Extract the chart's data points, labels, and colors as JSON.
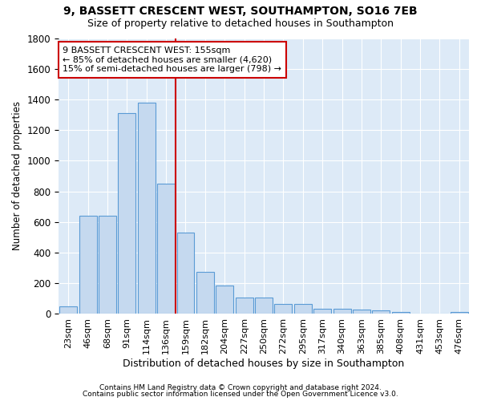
{
  "title": "9, BASSETT CRESCENT WEST, SOUTHAMPTON, SO16 7EB",
  "subtitle": "Size of property relative to detached houses in Southampton",
  "xlabel": "Distribution of detached houses by size in Southampton",
  "ylabel": "Number of detached properties",
  "bar_labels": [
    "23sqm",
    "46sqm",
    "68sqm",
    "91sqm",
    "114sqm",
    "136sqm",
    "159sqm",
    "182sqm",
    "204sqm",
    "227sqm",
    "250sqm",
    "272sqm",
    "295sqm",
    "317sqm",
    "340sqm",
    "363sqm",
    "385sqm",
    "408sqm",
    "431sqm",
    "453sqm",
    "476sqm"
  ],
  "bar_values": [
    50,
    640,
    640,
    1310,
    1380,
    850,
    530,
    275,
    185,
    105,
    105,
    65,
    65,
    35,
    35,
    30,
    25,
    15,
    0,
    0,
    15
  ],
  "bar_color": "#c5d9ef",
  "bar_edge_color": "#5a9bd5",
  "vline_index": 6,
  "vline_color": "#cc0000",
  "annotation_text": "9 BASSETT CRESCENT WEST: 155sqm\n← 85% of detached houses are smaller (4,620)\n15% of semi-detached houses are larger (798) →",
  "annotation_box_color": "#cc0000",
  "ylim": [
    0,
    1800
  ],
  "yticks": [
    0,
    200,
    400,
    600,
    800,
    1000,
    1200,
    1400,
    1600,
    1800
  ],
  "footer1": "Contains HM Land Registry data © Crown copyright and database right 2024.",
  "footer2": "Contains public sector information licensed under the Open Government Licence v3.0.",
  "bg_color": "#ffffff",
  "plot_bg_color": "#ddeaf7"
}
